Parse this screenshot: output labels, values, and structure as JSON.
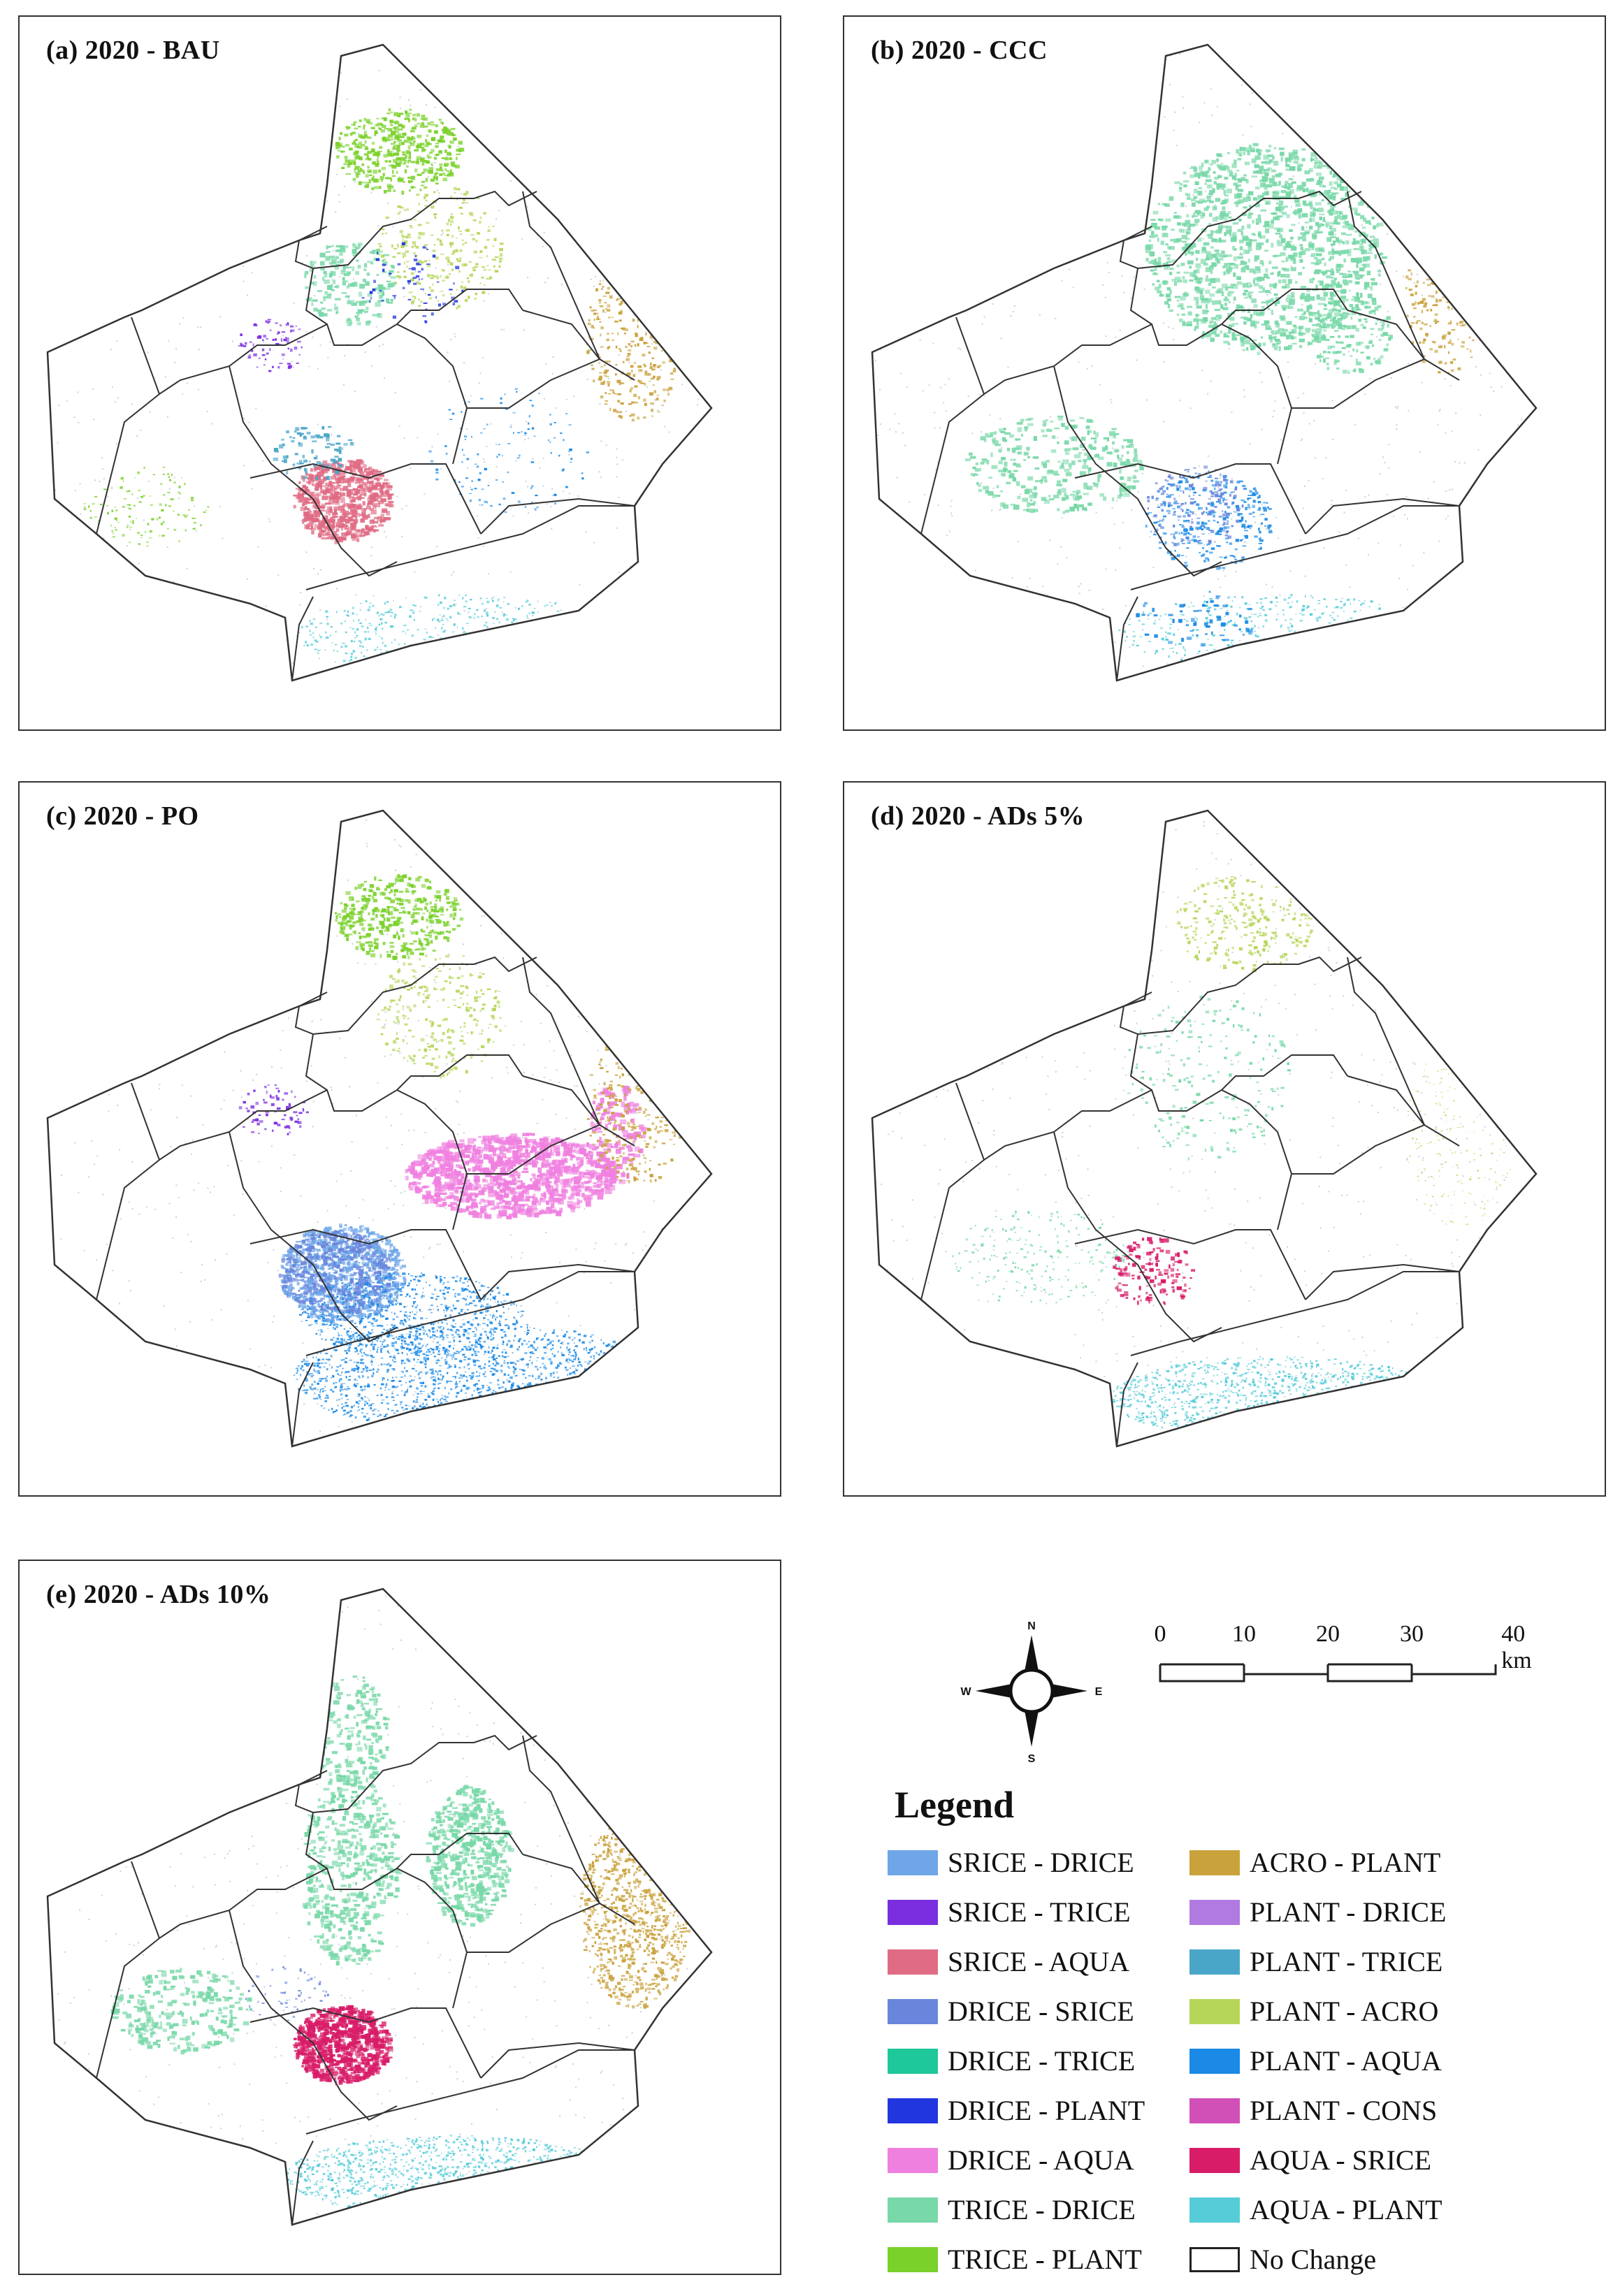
{
  "panels": [
    {
      "id": "a",
      "title": "(a) 2020 - BAU"
    },
    {
      "id": "b",
      "title": "(b) 2020 - CCC"
    },
    {
      "id": "c",
      "title": "(c) 2020 - PO"
    },
    {
      "id": "d",
      "title": "(d) 2020 - ADs 5%"
    },
    {
      "id": "e",
      "title": "(e) 2020 - ADs 10%"
    }
  ],
  "compass": {
    "n": "N",
    "s": "S",
    "e": "E",
    "w": "W"
  },
  "scale": {
    "ticks": [
      "0",
      "10",
      "20",
      "30",
      "40 km"
    ]
  },
  "legend": {
    "title": "Legend",
    "items": [
      {
        "label": "SRICE - DRICE",
        "color": "#6ea6e8"
      },
      {
        "label": "ACRO - PLANT",
        "color": "#c9a23c"
      },
      {
        "label": "SRICE - TRICE",
        "color": "#7a2ee0"
      },
      {
        "label": "PLANT - DRICE",
        "color": "#b07ae0"
      },
      {
        "label": "SRICE - AQUA",
        "color": "#e06b84"
      },
      {
        "label": "PLANT - TRICE",
        "color": "#4aa6c8"
      },
      {
        "label": "DRICE - SRICE",
        "color": "#6a86dc"
      },
      {
        "label": "PLANT - ACRO",
        "color": "#b6d65a"
      },
      {
        "label": "DRICE - TRICE",
        "color": "#1ec89a"
      },
      {
        "label": "PLANT - AQUA",
        "color": "#1a8ae6"
      },
      {
        "label": "DRICE - PLANT",
        "color": "#2236e0"
      },
      {
        "label": "PLANT - CONS",
        "color": "#d050b8"
      },
      {
        "label": "DRICE - AQUA",
        "color": "#f080e0"
      },
      {
        "label": "AQUA - SRICE",
        "color": "#d81c68"
      },
      {
        "label": "TRICE - DRICE",
        "color": "#78d8a8"
      },
      {
        "label": "AQUA - PLANT",
        "color": "#56ccd8"
      },
      {
        "label": "TRICE - PLANT",
        "color": "#7ad12a"
      },
      {
        "label": "No Change",
        "color": "#ffffff"
      }
    ]
  }
}
